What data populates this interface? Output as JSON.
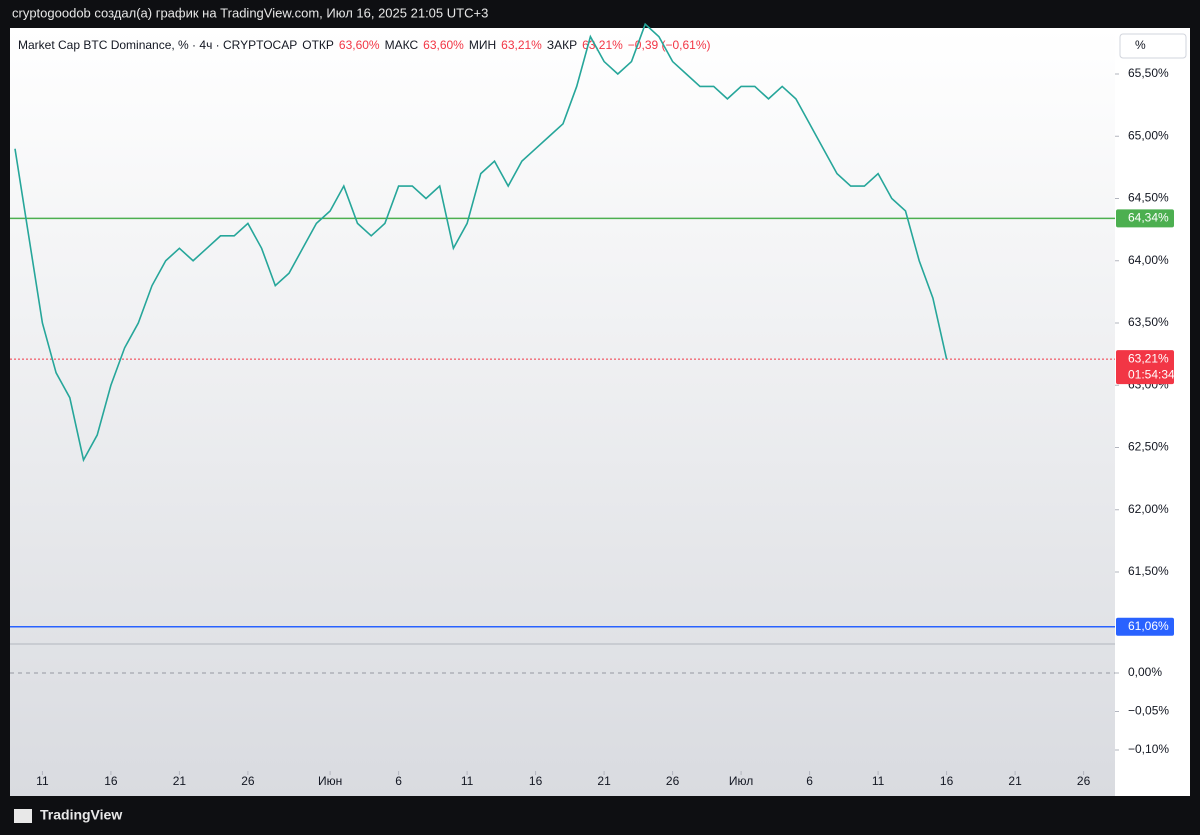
{
  "header": {
    "title": "cryptogoodob создал(а) график на TradingView.com, Июл 16, 2025 21:05 UTC+3"
  },
  "legend": {
    "symbol": "Market Cap BTC Dominance, % · 4ч · CRYPTOCAP",
    "fields": [
      {
        "label": "ОТКР",
        "value": "63,60%"
      },
      {
        "label": "МАКС",
        "value": "63,60%"
      },
      {
        "label": "МИН",
        "value": "63,21%"
      },
      {
        "label": "ЗАКР",
        "value": "63,21%"
      }
    ],
    "change": "−0,39 (−0,61%)"
  },
  "scale_button": "%",
  "price_axis": {
    "ticks": [
      {
        "value": 65.5,
        "label": "65,50%"
      },
      {
        "value": 65,
        "label": "65,00%"
      },
      {
        "value": 64.5,
        "label": "64,50%"
      },
      {
        "value": 64,
        "label": "64,00%"
      },
      {
        "value": 63.5,
        "label": "63,50%"
      },
      {
        "value": 63,
        "label": "63,00%"
      },
      {
        "value": 62.5,
        "label": "62,50%"
      },
      {
        "value": 62,
        "label": "62,00%"
      },
      {
        "value": 61.5,
        "label": "61,50%"
      }
    ]
  },
  "x_axis": {
    "ticks": [
      {
        "value": 2,
        "label": "11"
      },
      {
        "value": 7,
        "label": "16"
      },
      {
        "value": 12,
        "label": "21"
      },
      {
        "value": 17,
        "label": "26"
      },
      {
        "value": 23,
        "label": "Июн"
      },
      {
        "value": 28,
        "label": "6"
      },
      {
        "value": 33,
        "label": "11"
      },
      {
        "value": 38,
        "label": "16"
      },
      {
        "value": 43,
        "label": "21"
      },
      {
        "value": 48,
        "label": "26"
      },
      {
        "value": 53,
        "label": "Июл"
      },
      {
        "value": 58,
        "label": "6"
      },
      {
        "value": 63,
        "label": "11"
      },
      {
        "value": 68,
        "label": "16"
      },
      {
        "value": 73,
        "label": "21"
      },
      {
        "value": 78,
        "label": "26"
      }
    ]
  },
  "price": {
    "values": [
      64.9,
      64.2,
      63.5,
      63.1,
      62.9,
      62.4,
      62.6,
      63.0,
      63.3,
      63.5,
      63.8,
      64.0,
      64.1,
      64.0,
      64.1,
      64.2,
      64.2,
      64.3,
      64.1,
      63.8,
      63.9,
      64.1,
      64.3,
      64.4,
      64.6,
      64.3,
      64.2,
      64.3,
      64.6,
      64.6,
      64.5,
      64.6,
      64.1,
      64.3,
      64.7,
      64.8,
      64.6,
      64.8,
      64.9,
      65.0,
      65.1,
      65.4,
      65.8,
      65.6,
      65.5,
      65.6,
      65.9,
      65.8,
      65.6,
      65.5,
      65.4,
      65.4,
      65.3,
      65.4,
      65.4,
      65.3,
      65.4,
      65.3,
      65.1,
      64.9,
      64.7,
      64.6,
      64.6,
      64.7,
      64.5,
      64.4,
      64.0,
      63.7,
      63.21
    ]
  },
  "levels": [
    {
      "value": 64.34,
      "label": "64,34%",
      "color": "#4caf50"
    },
    {
      "value": 61.06,
      "label": "61,06%",
      "color": "#2962ff"
    },
    {
      "value": 63.21,
      "label": "63,21%",
      "color": "#f23645"
    }
  ],
  "countdown": "01:54:34",
  "oscillator": {
    "ticks": [
      {
        "value": 0,
        "label": "0,00%"
      },
      {
        "value": -0.05,
        "label": "−0,05%"
      },
      {
        "value": -0.1,
        "label": "−0,10%"
      }
    ]
  },
  "footer": "TradingView"
}
